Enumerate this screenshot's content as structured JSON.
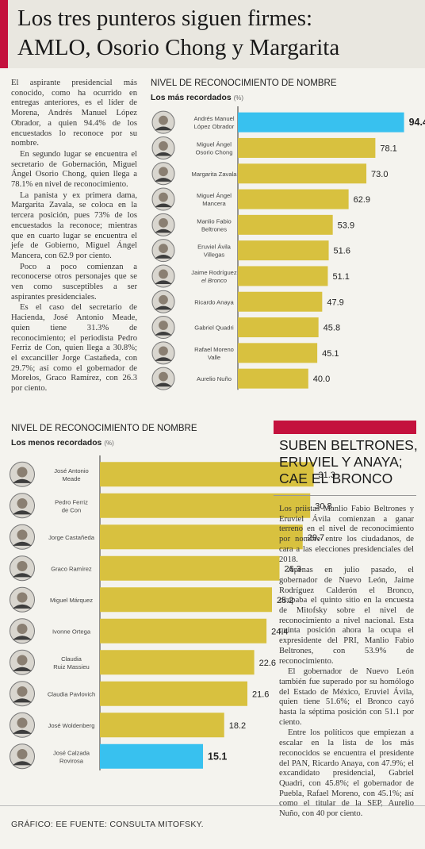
{
  "headline": {
    "line1": "Los tres punteros siguen firmes:",
    "line2": "AMLO, Osorio Chong y Margarita"
  },
  "intro_paragraphs": [
    "El aspirante presidencial más conocido, como ha ocurrido en entregas anteriores, es el líder de Morena, Andrés Manuel López Obrador, a quien 94.4% de los encuestados lo reconoce por su nombre.",
    "En segundo lugar se encuentra el secretario de Gobernación, Miguel Ángel Osorio Chong, quien llega a 78.1% en nivel de reconocimiento.",
    "La panista y ex primera dama, Margarita Zavala, se coloca en la tercera posición, pues 73% de los encuestados la reconoce; mientras que en cuarto lugar se encuentra el jefe de Gobierno, Miguel Ángel Mancera, con 62.9 por ciento.",
    "Poco a poco comienzan a reconocerse otros personajes que se ven como susceptibles a ser aspirantes presidenciales.",
    "Es el caso del secretario de Hacienda, José Antonio Meade, quien tiene 31.3% de reconocimiento; el periodista Pedro Ferriz de Con, quien llega a 30.8%; el excanciller Jorge Castañeda, con 29.7%; así como el gobernador de Morelos, Graco Ramírez, con 26.3 por ciento."
  ],
  "chart_data": [
    {
      "type": "bar",
      "orientation": "horizontal",
      "title": "NIVEL DE RECONOCIMIENTO DE NOMBRE",
      "subtitle": "Los más recordados",
      "unit": "(%)",
      "categories": [
        [
          "Andrés Manuel",
          "López Obrador"
        ],
        [
          "Miguel Ángel",
          "Osorio Chong"
        ],
        [
          "Margarita Zavala"
        ],
        [
          "Miguel Ángel",
          "Mancera"
        ],
        [
          "Manlio Fabio",
          "Beltrones"
        ],
        [
          "Eruviel Ávila",
          "Villegas"
        ],
        [
          "Jaime Rodríguez",
          "el Bronco"
        ],
        [
          "Ricardo Anaya"
        ],
        [
          "Gabriel Quadri"
        ],
        [
          "Rafael Moreno",
          "Valle"
        ],
        [
          "Aurelio Nuño"
        ]
      ],
      "values": [
        94.4,
        78.1,
        73.0,
        62.9,
        53.9,
        51.6,
        51.1,
        47.9,
        45.8,
        45.1,
        40.0
      ],
      "labels": [
        "94.4",
        "78.1",
        "73.0",
        "62.9",
        "53.9",
        "51.6",
        "51.1",
        "47.9",
        "45.8",
        "45.1",
        "40.0"
      ],
      "highlight_index": 0,
      "xlim": [
        0,
        100
      ],
      "colors": {
        "bar": "#d8c13f",
        "highlight": "#38c1ef"
      }
    },
    {
      "type": "bar",
      "orientation": "horizontal",
      "title": "NIVEL DE RECONOCIMIENTO DE NOMBRE",
      "subtitle": "Los menos recordados",
      "unit": "(%)",
      "categories": [
        [
          "José Antonio",
          "Meade"
        ],
        [
          "Pedro Ferriz",
          "de Con"
        ],
        [
          "Jorge Castañeda"
        ],
        [
          "Graco Ramírez"
        ],
        [
          "Miguel Márquez"
        ],
        [
          "Ivonne Ortega"
        ],
        [
          "Claudia",
          "Ruiz Massieu"
        ],
        [
          "Claudia Pavlovich"
        ],
        [
          "José Woldenberg"
        ],
        [
          "José Calzada",
          "Rovirosa"
        ]
      ],
      "values": [
        31.3,
        30.8,
        29.7,
        26.3,
        25.2,
        24.4,
        22.6,
        21.6,
        18.2,
        15.1
      ],
      "labels": [
        "31.3",
        "30.8",
        "29.7",
        "26.3",
        "25.2",
        "24.4",
        "22.6",
        "21.6",
        "18.2",
        "15.1"
      ],
      "highlight_index": 9,
      "xlim": [
        0,
        36
      ],
      "colors": {
        "bar": "#d8c13f",
        "highlight": "#38c1ef"
      }
    }
  ],
  "sidebar": {
    "title_lines": [
      "SUBEN BELTRONES,",
      "ERUVIEL Y ANAYA;",
      "CAE EL BRONCO"
    ],
    "paragraphs": [
      "Los priistas Manlio Fabio Beltrones y Eruviel Ávila comienzan a ganar terreno en el nivel de reconocimiento por nombre entre los ciudadanos, de cara a las elecciones presidenciales del 2018.",
      "Apenas en julio pasado, el gobernador de Nuevo León, Jaime Rodríguez Calderón el Bronco, ocupaba el quinto sitio en la encuesta de Mitofsky sobre el nivel de reconocimiento a nivel nacional. Esta quinta posición ahora la ocupa el expresidente del PRI, Manlio Fabio Beltrones, con 53.9% de reconocimiento.",
      "El gobernador de Nuevo León también fue superado por su homólogo del Estado de México, Eruviel Ávila, quien tiene 51.6%; el Bronco cayó hasta la séptima posición con 51.1 por ciento.",
      "Entre los políticos que empiezan a escalar en la lista de los más reconocidos se encuentra el presidente del PAN, Ricardo Anaya, con 47.9%; el excandidato presidencial, Gabriel Quadri, con 45.8%; el gobernador de Puebla, Rafael Moreno, con 45.1%; así como el titular de la SEP, Aurelio Nuño, con 40 por ciento."
    ]
  },
  "credit": "GRÁFICO: EE  FUENTE: CONSULTA MITOFSKY.",
  "icons": {
    "portrait": "person-portrait-icon"
  }
}
